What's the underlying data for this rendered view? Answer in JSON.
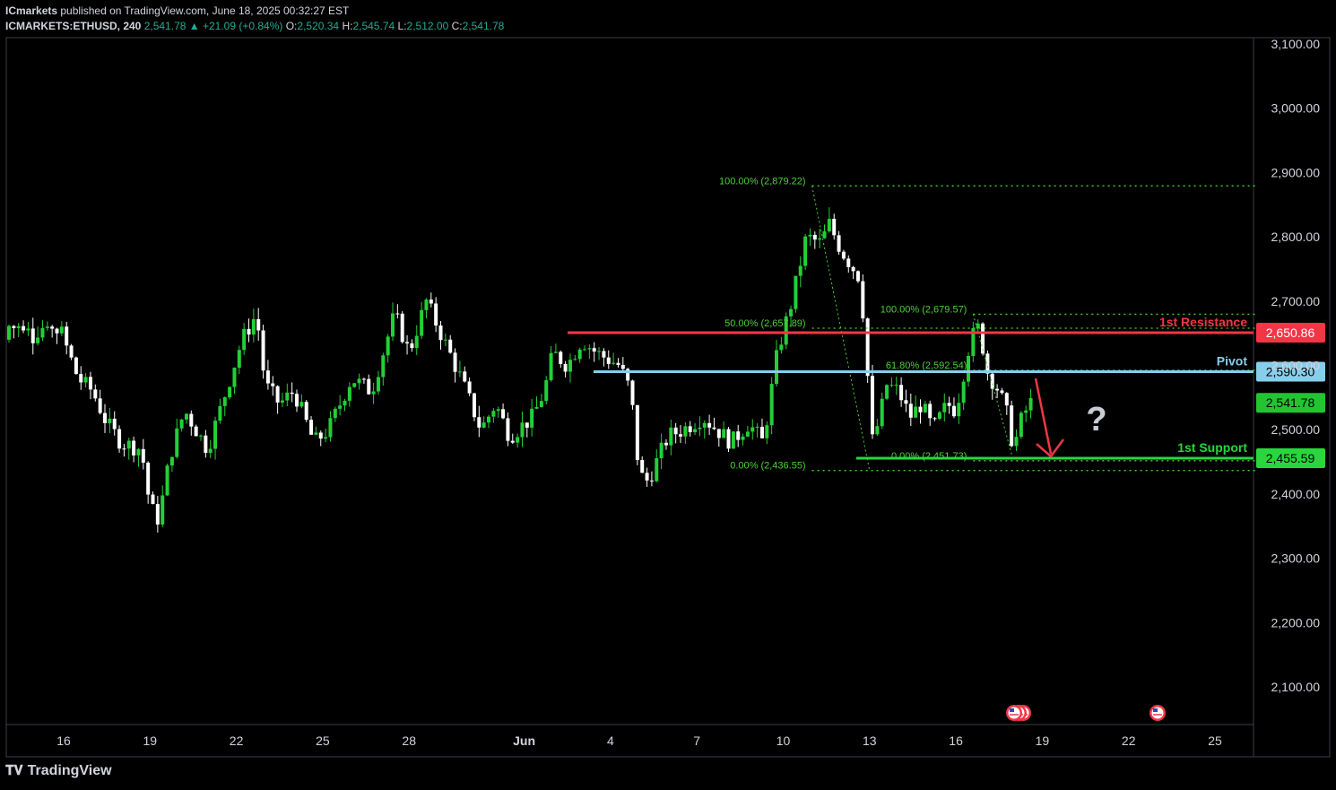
{
  "header": {
    "publisher": "ICmarkets",
    "published_text": "published on TradingView.com, June 18, 2025 00:32:27 EST",
    "symbol": "ICMARKETS:ETHUSD, 240",
    "last": "2,541.78",
    "change": "▲ +21.09 (+0.84%)",
    "o_label": "O:",
    "o_value": "2,520.34",
    "h_label": "H:",
    "h_value": "2,545.74",
    "l_label": "L:",
    "l_value": "2,512.00",
    "c_label": "C:",
    "c_value": "2,541.78"
  },
  "footer": {
    "brand": "TradingView",
    "logo_icon": "tradingview-logo-icon"
  },
  "colors": {
    "bull": "#22d036",
    "bear": "#ffffff",
    "resistance": "#f23645",
    "pivot": "#87ceeb",
    "support": "#2ad63e",
    "fib": "#4cd137",
    "arrow": "#f23645"
  },
  "annotations": {
    "question_mark": "?",
    "resistance_label": "1st Resistance",
    "pivot_label": "Pivot",
    "support_label": "1st Support",
    "event_icons": [
      "us-flag-icon",
      "us-flag-icon"
    ]
  },
  "chart_data": {
    "type": "candlestick",
    "ylim": [
      2020,
      3130
    ],
    "y_ticks": [
      2100,
      2200,
      2300,
      2400,
      2500,
      2600,
      2700,
      2800,
      2900,
      3000,
      3100
    ],
    "y_tick_labels": [
      "2,100.00",
      "2,200.00",
      "2,300.00",
      "2,400.00",
      "2,500.00",
      "2,600.00",
      "2,700.00",
      "2,800.00",
      "2,900.00",
      "3,000.00",
      "3,100.00"
    ],
    "x_ticks": [
      {
        "label": "16",
        "day": 0
      },
      {
        "label": "19",
        "day": 3
      },
      {
        "label": "22",
        "day": 6
      },
      {
        "label": "25",
        "day": 9
      },
      {
        "label": "28",
        "day": 12
      },
      {
        "label": "Jun",
        "day": 16
      },
      {
        "label": "4",
        "day": 19
      },
      {
        "label": "7",
        "day": 22
      },
      {
        "label": "10",
        "day": 25
      },
      {
        "label": "13",
        "day": 28
      },
      {
        "label": "16",
        "day": 31
      },
      {
        "label": "19",
        "day": 34
      },
      {
        "label": "22",
        "day": 37
      },
      {
        "label": "25",
        "day": 40
      }
    ],
    "levels": [
      {
        "name": "1st Resistance",
        "value": 2650.86,
        "label": "2,650.86",
        "color": "#f23645",
        "text_color": "#ffffff"
      },
      {
        "name": "Pivot",
        "value": 2590.3,
        "label": "2,590.30",
        "color": "#87ceeb",
        "text_color": "#000000"
      },
      {
        "name": "last",
        "value": 2541.78,
        "label": "2,541.78",
        "color": "#22c432",
        "text_color": "#000000"
      },
      {
        "name": "1st Support",
        "value": 2455.59,
        "label": "2,455.59",
        "color": "#2ad63e",
        "text_color": "#000000"
      }
    ],
    "fibs": [
      {
        "label": "100.00% (2,879.22)",
        "value": 2879.22
      },
      {
        "label": "50.00% (2,657.89)",
        "value": 2657.89
      },
      {
        "label": "0.00% (2,436.55)",
        "value": 2436.55
      },
      {
        "label": "100.00% (2,679.57)",
        "value": 2679.57
      },
      {
        "label": "61.80% (2,592.54)",
        "value": 2592.54
      },
      {
        "label": "0.00% (2,451.73)",
        "value": 2451.73
      }
    ],
    "anchors": [
      {
        "day": 0.0,
        "price": 2640
      },
      {
        "day": 0.5,
        "price": 2580
      },
      {
        "day": 1.0,
        "price": 2560
      },
      {
        "day": 1.5,
        "price": 2510
      },
      {
        "day": 2.0,
        "price": 2480
      },
      {
        "day": 2.7,
        "price": 2470
      },
      {
        "day": 3.0,
        "price": 2380
      },
      {
        "day": 3.3,
        "price": 2360
      },
      {
        "day": 3.7,
        "price": 2460
      },
      {
        "day": 4.2,
        "price": 2530
      },
      {
        "day": 5.0,
        "price": 2470
      },
      {
        "day": 5.5,
        "price": 2540
      },
      {
        "day": 6.2,
        "price": 2640
      },
      {
        "day": 6.7,
        "price": 2680
      },
      {
        "day": 7.0,
        "price": 2570
      },
      {
        "day": 7.5,
        "price": 2540
      },
      {
        "day": 8.0,
        "price": 2560
      },
      {
        "day": 8.7,
        "price": 2480
      },
      {
        "day": 9.2,
        "price": 2500
      },
      {
        "day": 10.0,
        "price": 2580
      },
      {
        "day": 10.7,
        "price": 2560
      },
      {
        "day": 11.5,
        "price": 2680
      },
      {
        "day": 12.0,
        "price": 2620
      },
      {
        "day": 12.6,
        "price": 2700
      },
      {
        "day": 13.2,
        "price": 2640
      },
      {
        "day": 13.8,
        "price": 2580
      },
      {
        "day": 14.5,
        "price": 2500
      },
      {
        "day": 15.0,
        "price": 2540
      },
      {
        "day": 15.5,
        "price": 2490
      },
      {
        "day": 16.3,
        "price": 2520
      },
      {
        "day": 16.7,
        "price": 2560
      },
      {
        "day": 17.0,
        "price": 2620
      },
      {
        "day": 17.5,
        "price": 2600
      },
      {
        "day": 18.0,
        "price": 2640
      },
      {
        "day": 18.5,
        "price": 2620
      },
      {
        "day": 19.3,
        "price": 2600
      },
      {
        "day": 19.7,
        "price": 2560
      },
      {
        "day": 20.0,
        "price": 2430
      },
      {
        "day": 20.3,
        "price": 2420
      },
      {
        "day": 21.0,
        "price": 2490
      },
      {
        "day": 21.5,
        "price": 2500
      },
      {
        "day": 22.2,
        "price": 2520
      },
      {
        "day": 23.2,
        "price": 2480
      },
      {
        "day": 23.8,
        "price": 2510
      },
      {
        "day": 24.3,
        "price": 2480
      },
      {
        "day": 24.8,
        "price": 2620
      },
      {
        "day": 25.3,
        "price": 2700
      },
      {
        "day": 25.8,
        "price": 2800
      },
      {
        "day": 26.3,
        "price": 2790
      },
      {
        "day": 26.6,
        "price": 2820
      },
      {
        "day": 27.0,
        "price": 2780
      },
      {
        "day": 27.6,
        "price": 2740
      },
      {
        "day": 27.9,
        "price": 2640
      },
      {
        "day": 28.0,
        "price": 2470
      },
      {
        "day": 28.3,
        "price": 2510
      },
      {
        "day": 28.6,
        "price": 2570
      },
      {
        "day": 29.0,
        "price": 2560
      },
      {
        "day": 29.4,
        "price": 2520
      },
      {
        "day": 29.8,
        "price": 2540
      },
      {
        "day": 30.2,
        "price": 2500
      },
      {
        "day": 30.7,
        "price": 2540
      },
      {
        "day": 31.0,
        "price": 2530
      },
      {
        "day": 31.5,
        "price": 2640
      },
      {
        "day": 31.8,
        "price": 2660
      },
      {
        "day": 32.1,
        "price": 2590
      },
      {
        "day": 32.5,
        "price": 2560
      },
      {
        "day": 32.8,
        "price": 2520
      },
      {
        "day": 33.0,
        "price": 2470
      },
      {
        "day": 33.3,
        "price": 2520
      },
      {
        "day": 33.6,
        "price": 2541.78
      }
    ]
  }
}
